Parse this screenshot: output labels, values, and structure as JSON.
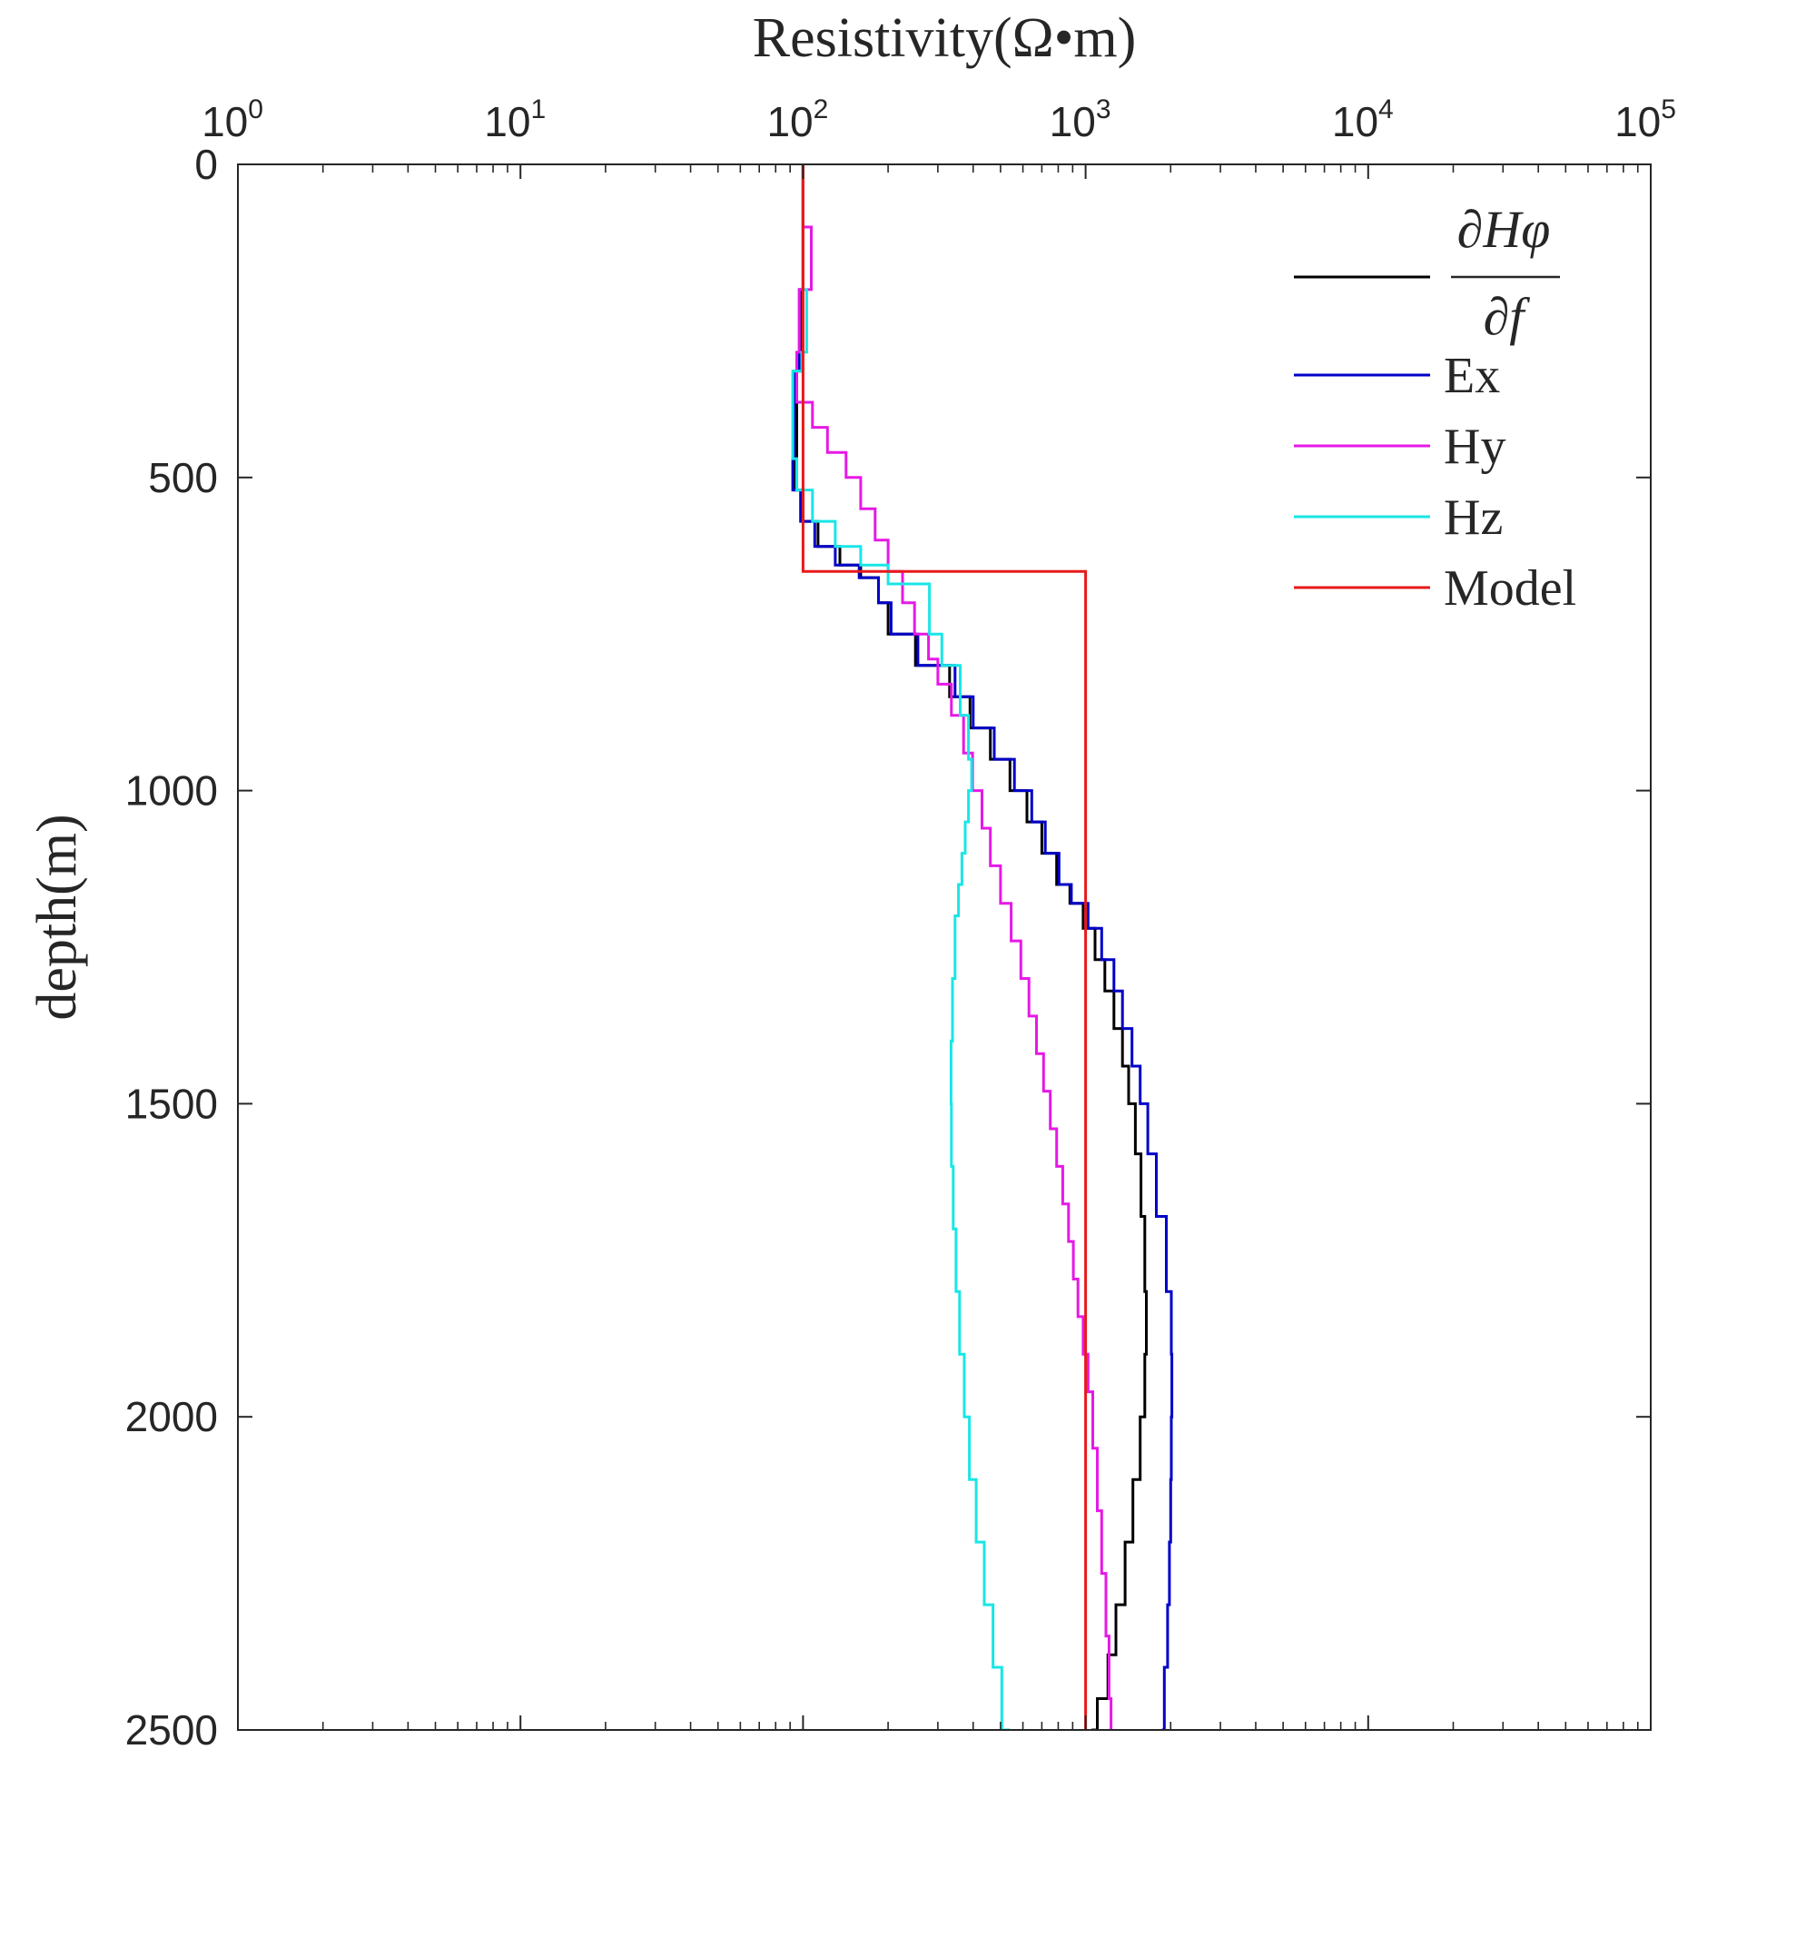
{
  "chart_data": {
    "type": "line",
    "xlabel": "Resistivity(Ω•m)",
    "ylabel": "depth(m)",
    "xscale": "log",
    "xlim": [
      1,
      100000
    ],
    "ylim": [
      0,
      2500
    ],
    "y_reversed": true,
    "x_ticks": [
      {
        "base": "10",
        "exp": "0",
        "value": 1
      },
      {
        "base": "10",
        "exp": "1",
        "value": 10
      },
      {
        "base": "10",
        "exp": "2",
        "value": 100
      },
      {
        "base": "10",
        "exp": "3",
        "value": 1000
      },
      {
        "base": "10",
        "exp": "4",
        "value": 10000
      },
      {
        "base": "10",
        "exp": "5",
        "value": 100000
      }
    ],
    "y_ticks": [
      "0",
      "500",
      "1000",
      "1500",
      "2000",
      "2500"
    ],
    "y_tick_values": [
      0,
      500,
      1000,
      1500,
      2000,
      2500
    ],
    "grid": false,
    "legend_position": "top-right",
    "legend_formula": {
      "numerator": "∂Hφ",
      "denominator": "∂f"
    },
    "series": [
      {
        "name": "∂Hφ/∂f",
        "color": "#000000",
        "step": true,
        "points": [
          [
            100,
            0
          ],
          [
            98,
            200
          ],
          [
            95,
            330
          ],
          [
            93,
            470
          ],
          [
            100,
            520
          ],
          [
            113,
            570
          ],
          [
            135,
            610
          ],
          [
            160,
            640
          ],
          [
            185,
            660
          ],
          [
            200,
            700
          ],
          [
            250,
            750
          ],
          [
            330,
            800
          ],
          [
            390,
            850
          ],
          [
            460,
            900
          ],
          [
            540,
            950
          ],
          [
            620,
            1000
          ],
          [
            700,
            1050
          ],
          [
            790,
            1100
          ],
          [
            880,
            1150
          ],
          [
            980,
            1180
          ],
          [
            1080,
            1220
          ],
          [
            1170,
            1270
          ],
          [
            1260,
            1320
          ],
          [
            1350,
            1380
          ],
          [
            1420,
            1440
          ],
          [
            1500,
            1500
          ],
          [
            1570,
            1580
          ],
          [
            1620,
            1680
          ],
          [
            1640,
            1800
          ],
          [
            1620,
            1900
          ],
          [
            1560,
            2000
          ],
          [
            1470,
            2100
          ],
          [
            1380,
            2200
          ],
          [
            1280,
            2300
          ],
          [
            1200,
            2380
          ],
          [
            1100,
            2450
          ],
          [
            1050,
            2500
          ]
        ]
      },
      {
        "name": "Ex",
        "color": "#0000c8",
        "step": true,
        "points": [
          [
            100,
            0
          ],
          [
            97,
            200
          ],
          [
            93,
            330
          ],
          [
            92,
            470
          ],
          [
            98,
            520
          ],
          [
            110,
            570
          ],
          [
            130,
            610
          ],
          [
            158,
            640
          ],
          [
            185,
            660
          ],
          [
            205,
            700
          ],
          [
            255,
            750
          ],
          [
            345,
            800
          ],
          [
            400,
            850
          ],
          [
            475,
            900
          ],
          [
            560,
            950
          ],
          [
            645,
            1000
          ],
          [
            720,
            1050
          ],
          [
            805,
            1100
          ],
          [
            890,
            1150
          ],
          [
            1020,
            1180
          ],
          [
            1140,
            1220
          ],
          [
            1260,
            1270
          ],
          [
            1350,
            1320
          ],
          [
            1460,
            1380
          ],
          [
            1560,
            1440
          ],
          [
            1660,
            1500
          ],
          [
            1780,
            1580
          ],
          [
            1930,
            1680
          ],
          [
            2010,
            1800
          ],
          [
            2020,
            1900
          ],
          [
            2010,
            2000
          ],
          [
            2000,
            2100
          ],
          [
            1980,
            2200
          ],
          [
            1950,
            2300
          ],
          [
            1900,
            2400
          ],
          [
            1860,
            2500
          ]
        ]
      },
      {
        "name": "Hy",
        "color": "#e619e6",
        "step": true,
        "points": [
          [
            100,
            0
          ],
          [
            107,
            100
          ],
          [
            97,
            200
          ],
          [
            95,
            300
          ],
          [
            108,
            380
          ],
          [
            122,
            420
          ],
          [
            142,
            460
          ],
          [
            160,
            500
          ],
          [
            180,
            550
          ],
          [
            200,
            600
          ],
          [
            225,
            650
          ],
          [
            248,
            700
          ],
          [
            278,
            750
          ],
          [
            300,
            790
          ],
          [
            335,
            830
          ],
          [
            370,
            880
          ],
          [
            398,
            940
          ],
          [
            430,
            1000
          ],
          [
            460,
            1060
          ],
          [
            500,
            1120
          ],
          [
            545,
            1180
          ],
          [
            590,
            1240
          ],
          [
            630,
            1300
          ],
          [
            670,
            1360
          ],
          [
            710,
            1420
          ],
          [
            750,
            1480
          ],
          [
            790,
            1540
          ],
          [
            830,
            1600
          ],
          [
            870,
            1660
          ],
          [
            905,
            1720
          ],
          [
            940,
            1780
          ],
          [
            980,
            1840
          ],
          [
            1020,
            1900
          ],
          [
            1060,
            1960
          ],
          [
            1100,
            2050
          ],
          [
            1140,
            2150
          ],
          [
            1180,
            2250
          ],
          [
            1210,
            2350
          ],
          [
            1230,
            2450
          ],
          [
            1240,
            2500
          ]
        ]
      },
      {
        "name": "Hz",
        "color": "#19e6e6",
        "step": true,
        "points": [
          [
            100,
            0
          ],
          [
            103,
            200
          ],
          [
            99,
            300
          ],
          [
            92,
            330
          ],
          [
            95,
            470
          ],
          [
            108,
            520
          ],
          [
            130,
            570
          ],
          [
            160,
            610
          ],
          [
            200,
            640
          ],
          [
            280,
            670
          ],
          [
            310,
            750
          ],
          [
            360,
            800
          ],
          [
            385,
            880
          ],
          [
            395,
            950
          ],
          [
            385,
            1000
          ],
          [
            375,
            1050
          ],
          [
            365,
            1100
          ],
          [
            355,
            1150
          ],
          [
            345,
            1200
          ],
          [
            338,
            1300
          ],
          [
            334,
            1400
          ],
          [
            335,
            1500
          ],
          [
            340,
            1600
          ],
          [
            348,
            1700
          ],
          [
            358,
            1800
          ],
          [
            372,
            1900
          ],
          [
            388,
            2000
          ],
          [
            410,
            2100
          ],
          [
            438,
            2200
          ],
          [
            470,
            2300
          ],
          [
            505,
            2400
          ],
          [
            540,
            2500
          ]
        ]
      },
      {
        "name": "Model",
        "color": "#e61a1a",
        "step": false,
        "points": [
          [
            100,
            0
          ],
          [
            100,
            650
          ],
          [
            1000,
            650
          ],
          [
            1000,
            2500
          ]
        ]
      }
    ]
  }
}
